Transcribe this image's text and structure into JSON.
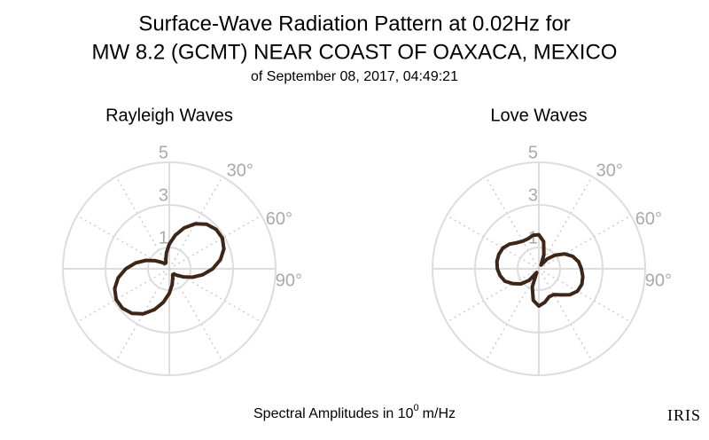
{
  "title": [
    "Surface-Wave Radiation Pattern at 0.02Hz for",
    "MW 8.2 (GCMT) NEAR COAST OF OAXACA, MEXICO"
  ],
  "subtitle": "of September 08, 2017, 04:49:21",
  "footer": [
    "Spectral Amplitudes in 10",
    "0",
    "m/Hz"
  ],
  "logo": "IRIS",
  "chart_data": [
    {
      "type": "polar",
      "title": "Rayleigh Waves",
      "color": "#3d2517",
      "theta": [
        0,
        10,
        20,
        30,
        40,
        50,
        60,
        70,
        80,
        90,
        100,
        110,
        120,
        130,
        140,
        150,
        160,
        170,
        180,
        190,
        200,
        210,
        220,
        230,
        240,
        250,
        260,
        270,
        280,
        290,
        300,
        310,
        320,
        330,
        340,
        350
      ],
      "values": [
        1.16,
        1.6,
        2.04,
        2.44,
        2.73,
        2.88,
        2.88,
        2.73,
        2.44,
        2.04,
        1.6,
        1.16,
        0.76,
        0.47,
        0.32,
        0.32,
        0.47,
        0.76,
        1.16,
        1.6,
        2.04,
        2.44,
        2.73,
        2.88,
        2.88,
        2.73,
        2.44,
        2.04,
        1.6,
        1.16,
        0.76,
        0.47,
        0.32,
        0.32,
        0.47,
        0.76
      ],
      "rlim": [
        0,
        5
      ],
      "rticks": [
        1,
        3,
        5
      ],
      "thetagrid": [
        0,
        30,
        60,
        90,
        120,
        150,
        180,
        210,
        240,
        270,
        300,
        330
      ],
      "thetaticks": [
        {
          "value": 30,
          "label": "30°"
        },
        {
          "value": 60,
          "label": "60°"
        },
        {
          "value": 90,
          "label": "90°"
        }
      ]
    },
    {
      "type": "polar",
      "title": "Love Waves",
      "color": "#3d2517",
      "theta": [
        0,
        10,
        20,
        30,
        40,
        50,
        60,
        70,
        80,
        90,
        100,
        110,
        120,
        130,
        140,
        150,
        160,
        170,
        180,
        190,
        200,
        210,
        220,
        230,
        240,
        250,
        260,
        270,
        280,
        290,
        300,
        310,
        320,
        330,
        340,
        350
      ],
      "values": [
        1.6,
        1.3,
        0.7,
        0.2,
        0.6,
        1.0,
        1.4,
        1.7,
        1.9,
        2.0,
        2.1,
        2.15,
        2.1,
        1.9,
        1.6,
        1.4,
        1.4,
        1.6,
        1.75,
        1.5,
        0.9,
        0.2,
        0.7,
        1.1,
        1.4,
        1.7,
        1.85,
        1.95,
        2.0,
        2.0,
        1.95,
        1.8,
        1.6,
        1.5,
        1.5,
        1.6
      ],
      "rlim": [
        0,
        5
      ],
      "rticks": [
        1,
        3,
        5
      ],
      "thetagrid": [
        0,
        30,
        60,
        90,
        120,
        150,
        180,
        210,
        240,
        270,
        300,
        330
      ],
      "thetaticks": [
        {
          "value": 30,
          "label": "30°"
        },
        {
          "value": 60,
          "label": "60°"
        },
        {
          "value": 90,
          "label": "90°"
        }
      ]
    }
  ]
}
